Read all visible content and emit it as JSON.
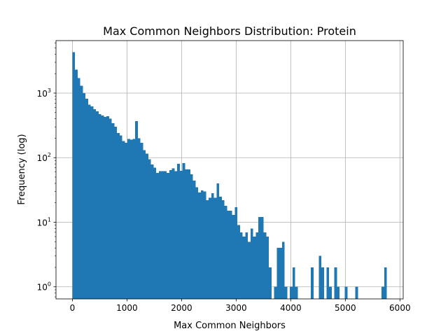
{
  "chart_data": {
    "type": "bar",
    "title": "Max Common Neighbors Distribution: Protein",
    "xlabel": "Max Common Neighbors",
    "ylabel": "Frequency (log)",
    "xlim": [
      -300,
      6060
    ],
    "ylim": [
      0.65,
      6500
    ],
    "yscale": "log",
    "grid": true,
    "bar_color": "#1f77b4",
    "bin_width": 48,
    "x_ticks": [
      {
        "value": 0,
        "label": "0"
      },
      {
        "value": 1000,
        "label": "1000"
      },
      {
        "value": 2000,
        "label": "2000"
      },
      {
        "value": 3000,
        "label": "3000"
      },
      {
        "value": 4000,
        "label": "4000"
      },
      {
        "value": 5000,
        "label": "5000"
      },
      {
        "value": 6000,
        "label": "6000"
      }
    ],
    "y_ticks": [
      {
        "value": 1,
        "base": "10",
        "exp": "0"
      },
      {
        "value": 10,
        "base": "10",
        "exp": "1"
      },
      {
        "value": 100,
        "base": "10",
        "exp": "2"
      },
      {
        "value": 1000,
        "base": "10",
        "exp": "3"
      }
    ],
    "y_minor_ticks": [
      0.7,
      0.8,
      0.9,
      2,
      3,
      4,
      5,
      6,
      7,
      8,
      9,
      20,
      30,
      40,
      50,
      60,
      70,
      80,
      90,
      200,
      300,
      400,
      500,
      600,
      700,
      800,
      900,
      2000,
      3000,
      4000,
      5000,
      6000
    ],
    "bins": [
      {
        "x": 0,
        "y": 4300
      },
      {
        "x": 48,
        "y": 2300
      },
      {
        "x": 96,
        "y": 1700
      },
      {
        "x": 144,
        "y": 1300
      },
      {
        "x": 192,
        "y": 1000
      },
      {
        "x": 240,
        "y": 820
      },
      {
        "x": 288,
        "y": 660
      },
      {
        "x": 336,
        "y": 620
      },
      {
        "x": 384,
        "y": 560
      },
      {
        "x": 432,
        "y": 520
      },
      {
        "x": 480,
        "y": 470
      },
      {
        "x": 528,
        "y": 450
      },
      {
        "x": 576,
        "y": 430
      },
      {
        "x": 624,
        "y": 440
      },
      {
        "x": 672,
        "y": 400
      },
      {
        "x": 720,
        "y": 340
      },
      {
        "x": 768,
        "y": 300
      },
      {
        "x": 816,
        "y": 240
      },
      {
        "x": 864,
        "y": 220
      },
      {
        "x": 912,
        "y": 180
      },
      {
        "x": 960,
        "y": 170
      },
      {
        "x": 1008,
        "y": 195
      },
      {
        "x": 1056,
        "y": 190
      },
      {
        "x": 1104,
        "y": 195
      },
      {
        "x": 1152,
        "y": 370
      },
      {
        "x": 1200,
        "y": 200
      },
      {
        "x": 1248,
        "y": 170
      },
      {
        "x": 1296,
        "y": 130
      },
      {
        "x": 1344,
        "y": 115
      },
      {
        "x": 1392,
        "y": 95
      },
      {
        "x": 1440,
        "y": 78
      },
      {
        "x": 1488,
        "y": 70
      },
      {
        "x": 1536,
        "y": 58
      },
      {
        "x": 1584,
        "y": 62
      },
      {
        "x": 1632,
        "y": 62
      },
      {
        "x": 1680,
        "y": 62
      },
      {
        "x": 1728,
        "y": 58
      },
      {
        "x": 1776,
        "y": 64
      },
      {
        "x": 1824,
        "y": 68
      },
      {
        "x": 1872,
        "y": 62
      },
      {
        "x": 1920,
        "y": 80
      },
      {
        "x": 1968,
        "y": 63
      },
      {
        "x": 2016,
        "y": 82
      },
      {
        "x": 2064,
        "y": 66
      },
      {
        "x": 2112,
        "y": 66
      },
      {
        "x": 2160,
        "y": 55
      },
      {
        "x": 2208,
        "y": 44
      },
      {
        "x": 2256,
        "y": 35
      },
      {
        "x": 2304,
        "y": 29
      },
      {
        "x": 2352,
        "y": 31
      },
      {
        "x": 2400,
        "y": 30
      },
      {
        "x": 2448,
        "y": 22
      },
      {
        "x": 2496,
        "y": 24
      },
      {
        "x": 2544,
        "y": 28
      },
      {
        "x": 2592,
        "y": 24
      },
      {
        "x": 2640,
        "y": 40
      },
      {
        "x": 2688,
        "y": 25
      },
      {
        "x": 2736,
        "y": 22
      },
      {
        "x": 2784,
        "y": 18
      },
      {
        "x": 2832,
        "y": 15
      },
      {
        "x": 2880,
        "y": 15
      },
      {
        "x": 2928,
        "y": 13
      },
      {
        "x": 2976,
        "y": 17
      },
      {
        "x": 3024,
        "y": 9
      },
      {
        "x": 3072,
        "y": 7
      },
      {
        "x": 3120,
        "y": 6
      },
      {
        "x": 3168,
        "y": 7
      },
      {
        "x": 3216,
        "y": 5
      },
      {
        "x": 3264,
        "y": 8
      },
      {
        "x": 3312,
        "y": 6
      },
      {
        "x": 3360,
        "y": 7
      },
      {
        "x": 3408,
        "y": 12
      },
      {
        "x": 3456,
        "y": 12
      },
      {
        "x": 3504,
        "y": 7
      },
      {
        "x": 3552,
        "y": 6
      },
      {
        "x": 3600,
        "y": 2
      },
      {
        "x": 3648,
        "y": 0
      },
      {
        "x": 3696,
        "y": 1
      },
      {
        "x": 3744,
        "y": 4
      },
      {
        "x": 3792,
        "y": 4
      },
      {
        "x": 3840,
        "y": 5
      },
      {
        "x": 3888,
        "y": 1
      },
      {
        "x": 3936,
        "y": 0
      },
      {
        "x": 3984,
        "y": 1
      },
      {
        "x": 4032,
        "y": 2
      },
      {
        "x": 4080,
        "y": 1
      },
      {
        "x": 4128,
        "y": 0
      },
      {
        "x": 4176,
        "y": 0
      },
      {
        "x": 4224,
        "y": 0
      },
      {
        "x": 4272,
        "y": 0
      },
      {
        "x": 4320,
        "y": 0
      },
      {
        "x": 4368,
        "y": 2
      },
      {
        "x": 4416,
        "y": 0
      },
      {
        "x": 4464,
        "y": 0
      },
      {
        "x": 4512,
        "y": 3
      },
      {
        "x": 4560,
        "y": 2
      },
      {
        "x": 4608,
        "y": 0
      },
      {
        "x": 4656,
        "y": 2
      },
      {
        "x": 4704,
        "y": 1
      },
      {
        "x": 4752,
        "y": 0
      },
      {
        "x": 4800,
        "y": 2
      },
      {
        "x": 4848,
        "y": 1
      },
      {
        "x": 4896,
        "y": 0
      },
      {
        "x": 4944,
        "y": 0
      },
      {
        "x": 4992,
        "y": 1
      },
      {
        "x": 5040,
        "y": 0
      },
      {
        "x": 5088,
        "y": 0
      },
      {
        "x": 5136,
        "y": 0
      },
      {
        "x": 5184,
        "y": 1
      },
      {
        "x": 5232,
        "y": 0
      },
      {
        "x": 5280,
        "y": 0
      },
      {
        "x": 5328,
        "y": 0
      },
      {
        "x": 5376,
        "y": 0
      },
      {
        "x": 5424,
        "y": 0
      },
      {
        "x": 5472,
        "y": 0
      },
      {
        "x": 5520,
        "y": 0
      },
      {
        "x": 5568,
        "y": 0
      },
      {
        "x": 5616,
        "y": 0
      },
      {
        "x": 5664,
        "y": 1
      },
      {
        "x": 5712,
        "y": 2
      }
    ]
  }
}
